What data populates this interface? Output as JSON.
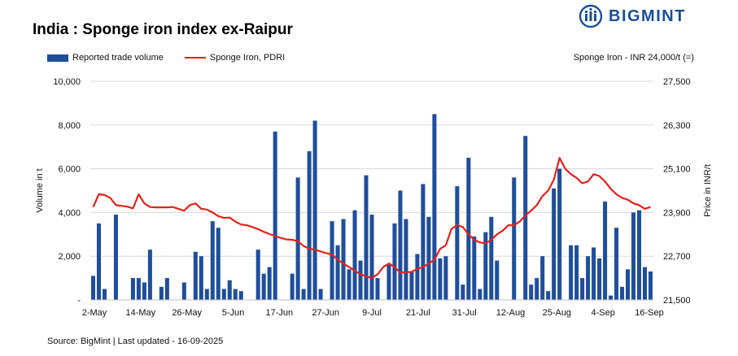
{
  "title": "India : Sponge iron index ex-Raipur",
  "brand": {
    "name": "BIGMINT",
    "color": "#1a4f9a"
  },
  "note": "Sponge Iron - INR 24,000/t (=)",
  "source": "Source: BigMint | Last updated - 16-09-2025",
  "chart_data": {
    "type": "bar+line",
    "title": "India : Sponge iron index ex-Raipur",
    "xlabel": "",
    "ylabel": "Volume in t",
    "y2label": "Price in INR/t",
    "ylim": [
      0,
      10000
    ],
    "y2lim": [
      21500,
      27500
    ],
    "yticks": [
      "-",
      "2,000",
      "4,000",
      "6,000",
      "8,000",
      "10,000"
    ],
    "y2ticks": [
      "21,500",
      "22,700",
      "23,900",
      "25,100",
      "26,300",
      "27,500"
    ],
    "xticks": [
      "2-May",
      "14-May",
      "26-May",
      "5-Jun",
      "17-Jun",
      "27-Jun",
      "9-Jul",
      "21-Jul",
      "31-Jul",
      "12-Aug",
      "25-Aug",
      "4-Sep",
      "16-Sep"
    ],
    "legend": "top-left",
    "grid": "horizontal",
    "colors": {
      "bars": "#1f4e9b",
      "line": "#e2231a"
    },
    "series": [
      {
        "name": "Reported trade volume",
        "kind": "bar",
        "axis": "left",
        "values": [
          1100,
          3500,
          500,
          0,
          3900,
          0,
          0,
          1000,
          1000,
          800,
          2300,
          0,
          600,
          1000,
          0,
          0,
          800,
          0,
          2200,
          2000,
          500,
          3600,
          3300,
          500,
          900,
          500,
          400,
          0,
          0,
          2300,
          1200,
          1500,
          7700,
          0,
          0,
          1200,
          5600,
          500,
          6800,
          8200,
          500,
          0,
          3600,
          2500,
          3700,
          1400,
          4100,
          1800,
          5700,
          3900,
          1000,
          0,
          1600,
          3500,
          5000,
          3700,
          1300,
          2100,
          5300,
          3800,
          8500,
          1900,
          2000,
          0,
          5200,
          700,
          6500,
          2900,
          500,
          3100,
          3800,
          1800,
          0,
          0,
          5600,
          0,
          7500,
          700,
          1000,
          2000,
          400,
          5100,
          6000,
          0,
          2500,
          2500,
          1000,
          2000,
          2400,
          1900,
          4500,
          200,
          3300,
          600,
          1400,
          4000,
          4100,
          1500,
          1300
        ]
      },
      {
        "name": "Sponge Iron, PDRI",
        "kind": "line",
        "axis": "right",
        "values": [
          24050,
          24400,
          24380,
          24300,
          24100,
          24080,
          24060,
          24010,
          24400,
          24150,
          24050,
          24040,
          24040,
          24040,
          24050,
          24000,
          23950,
          24100,
          24150,
          24000,
          23980,
          23900,
          23800,
          23750,
          23760,
          23650,
          23570,
          23550,
          23500,
          23440,
          23370,
          23310,
          23250,
          23200,
          23160,
          23150,
          23110,
          22980,
          22900,
          22880,
          22830,
          22780,
          22750,
          22600,
          22500,
          22400,
          22300,
          22200,
          22150,
          22100,
          22200,
          22400,
          22500,
          22400,
          22250,
          22260,
          22270,
          22350,
          22400,
          22500,
          22600,
          22900,
          23000,
          23450,
          23550,
          23500,
          23300,
          23150,
          23080,
          23050,
          23150,
          23300,
          23400,
          23550,
          23550,
          23650,
          23820,
          23950,
          24100,
          24350,
          24500,
          24800,
          25400,
          25100,
          24950,
          24850,
          24700,
          24750,
          24950,
          24900,
          24750,
          24550,
          24400,
          24300,
          24250,
          24150,
          24100,
          24000,
          24050
        ]
      }
    ]
  }
}
